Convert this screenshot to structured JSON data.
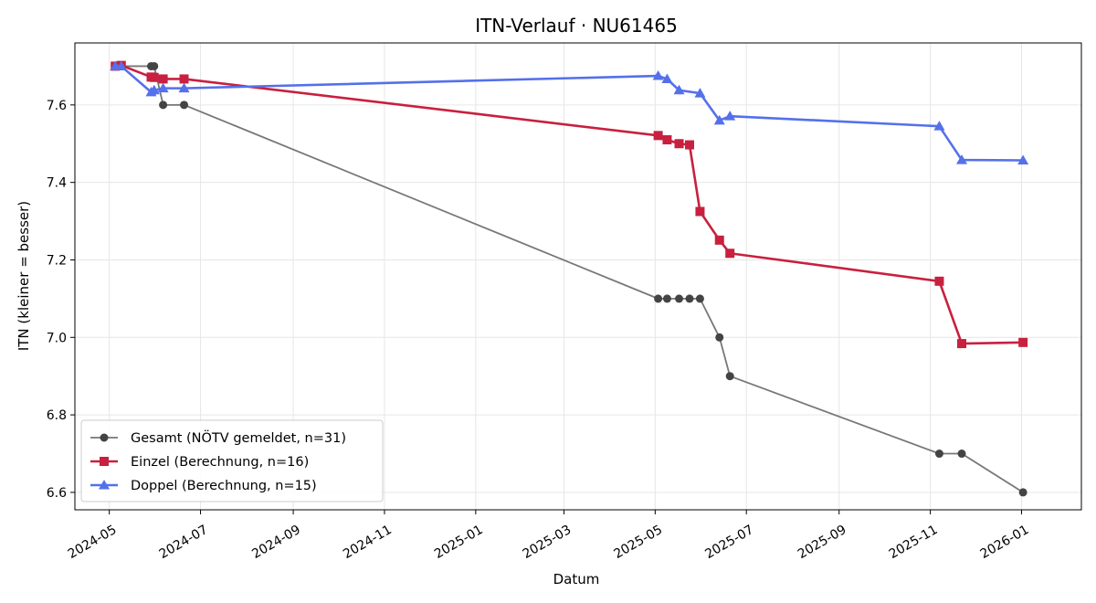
{
  "chart_data": {
    "type": "line",
    "title": "ITN-Verlauf · NU61465",
    "xlabel": "Datum",
    "ylabel": "ITN  (kleiner = besser)",
    "x_type": "date",
    "xlim": [
      "2024-04-08",
      "2026-02-10"
    ],
    "ylim": [
      6.555,
      7.76
    ],
    "x_ticks": [
      {
        "value": "2024-05-01",
        "label": "2024-05"
      },
      {
        "value": "2024-07-01",
        "label": "2024-07"
      },
      {
        "value": "2024-09-01",
        "label": "2024-09"
      },
      {
        "value": "2024-11-01",
        "label": "2024-11"
      },
      {
        "value": "2025-01-01",
        "label": "2025-01"
      },
      {
        "value": "2025-03-01",
        "label": "2025-03"
      },
      {
        "value": "2025-05-01",
        "label": "2025-05"
      },
      {
        "value": "2025-07-01",
        "label": "2025-07"
      },
      {
        "value": "2025-09-01",
        "label": "2025-09"
      },
      {
        "value": "2025-11-01",
        "label": "2025-11"
      },
      {
        "value": "2026-01-01",
        "label": "2026-01"
      }
    ],
    "y_ticks": [
      {
        "value": 6.6,
        "label": "6.6"
      },
      {
        "value": 6.8,
        "label": "6.8"
      },
      {
        "value": 7.0,
        "label": "7.0"
      },
      {
        "value": 7.2,
        "label": "7.2"
      },
      {
        "value": 7.4,
        "label": "7.4"
      },
      {
        "value": 7.6,
        "label": "7.6"
      }
    ],
    "grid": true,
    "legend_position": "lower-left",
    "series": [
      {
        "name": "Gesamt (NÖTV gemeldet, n=31)",
        "color": "#777777",
        "marker_color": "#444444",
        "marker": "circle",
        "points": [
          {
            "x": "2024-05-05",
            "y": 7.7
          },
          {
            "x": "2024-05-09",
            "y": 7.7
          },
          {
            "x": "2024-05-29",
            "y": 7.7
          },
          {
            "x": "2024-05-31",
            "y": 7.7
          },
          {
            "x": "2024-06-06",
            "y": 7.6
          },
          {
            "x": "2024-06-20",
            "y": 7.6
          },
          {
            "x": "2025-05-03",
            "y": 7.1
          },
          {
            "x": "2025-05-09",
            "y": 7.1
          },
          {
            "x": "2025-05-17",
            "y": 7.1
          },
          {
            "x": "2025-05-24",
            "y": 7.1
          },
          {
            "x": "2025-05-31",
            "y": 7.1
          },
          {
            "x": "2025-06-13",
            "y": 7.0
          },
          {
            "x": "2025-06-20",
            "y": 6.9
          },
          {
            "x": "2025-11-07",
            "y": 6.7
          },
          {
            "x": "2025-11-22",
            "y": 6.7
          },
          {
            "x": "2026-01-02",
            "y": 6.6
          }
        ]
      },
      {
        "name": "Einzel (Berechnung, n=16)",
        "color": "#c8203f",
        "marker_color": "#c8203f",
        "marker": "square",
        "points": [
          {
            "x": "2024-05-05",
            "y": 7.7
          },
          {
            "x": "2024-05-09",
            "y": 7.702
          },
          {
            "x": "2024-05-29",
            "y": 7.672
          },
          {
            "x": "2024-05-31",
            "y": 7.671
          },
          {
            "x": "2024-06-06",
            "y": 7.667
          },
          {
            "x": "2024-06-20",
            "y": 7.667
          },
          {
            "x": "2025-05-03",
            "y": 7.521
          },
          {
            "x": "2025-05-09",
            "y": 7.51
          },
          {
            "x": "2025-05-17",
            "y": 7.5
          },
          {
            "x": "2025-05-24",
            "y": 7.497
          },
          {
            "x": "2025-05-31",
            "y": 7.325
          },
          {
            "x": "2025-06-13",
            "y": 7.251
          },
          {
            "x": "2025-06-20",
            "y": 7.217
          },
          {
            "x": "2025-11-07",
            "y": 7.145
          },
          {
            "x": "2025-11-22",
            "y": 6.984
          },
          {
            "x": "2026-01-02",
            "y": 6.987
          }
        ]
      },
      {
        "name": "Doppel (Berechnung, n=15)",
        "color": "#5470ea",
        "marker_color": "#5470ea",
        "marker": "triangle",
        "points": [
          {
            "x": "2024-05-05",
            "y": 7.7
          },
          {
            "x": "2024-05-09",
            "y": 7.7
          },
          {
            "x": "2024-05-29",
            "y": 7.633
          },
          {
            "x": "2024-05-31",
            "y": 7.638
          },
          {
            "x": "2024-06-06",
            "y": 7.643
          },
          {
            "x": "2024-06-20",
            "y": 7.643
          },
          {
            "x": "2025-05-03",
            "y": 7.675
          },
          {
            "x": "2025-05-09",
            "y": 7.667
          },
          {
            "x": "2025-05-17",
            "y": 7.638
          },
          {
            "x": "2025-05-31",
            "y": 7.63
          },
          {
            "x": "2025-06-13",
            "y": 7.56
          },
          {
            "x": "2025-06-20",
            "y": 7.571
          },
          {
            "x": "2025-11-07",
            "y": 7.545
          },
          {
            "x": "2025-11-22",
            "y": 7.458
          },
          {
            "x": "2026-01-02",
            "y": 7.457
          }
        ]
      }
    ]
  }
}
